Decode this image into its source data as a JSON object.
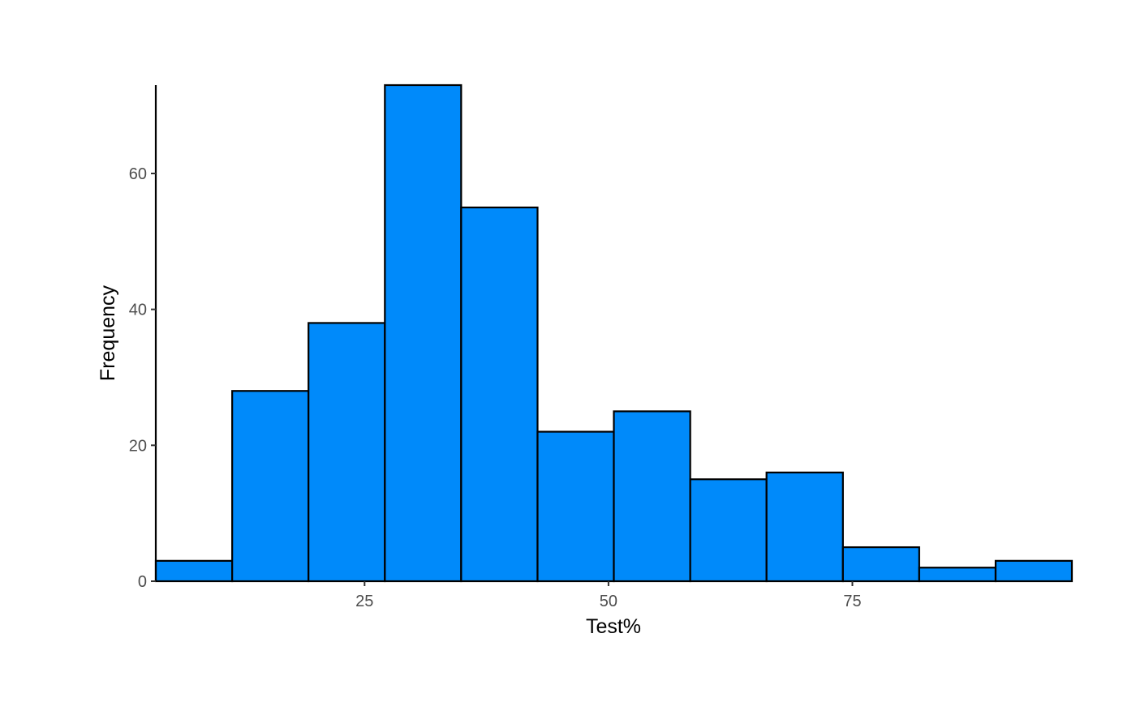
{
  "chart_data": {
    "type": "bar",
    "subtype": "histogram",
    "title": "",
    "xlabel": "Test%",
    "ylabel": "Frequency",
    "xlim": [
      3.6,
      97.5
    ],
    "ylim": [
      0,
      73
    ],
    "xticks": [
      25,
      50,
      75
    ],
    "yticks": [
      0,
      20,
      40,
      60
    ],
    "bin_edges": [
      3.6,
      11.43,
      19.25,
      27.08,
      34.9,
      42.73,
      50.55,
      58.38,
      66.2,
      74.03,
      81.85,
      89.68,
      97.5
    ],
    "values": [
      3,
      28,
      38,
      73,
      55,
      22,
      25,
      15,
      16,
      5,
      2,
      3
    ],
    "bar_fill": "#008AFA",
    "bar_stroke": "#000000",
    "grid": false,
    "legend": "none"
  }
}
